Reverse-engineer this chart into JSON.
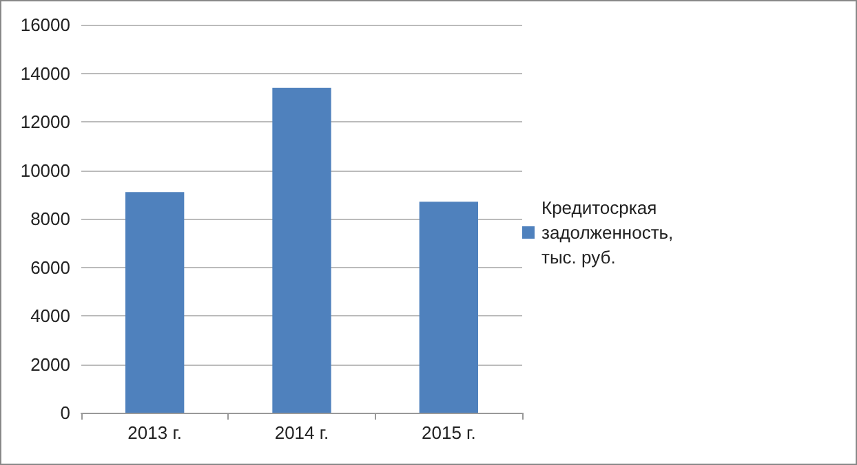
{
  "chart_data": {
    "type": "bar",
    "categories": [
      "2013 г.",
      "2014 г.",
      "2015 г."
    ],
    "series": [
      {
        "name": "Кредитосркая задолженность, тыс. руб.",
        "color": "#4f81bd",
        "values": [
          9100,
          13400,
          8700
        ]
      }
    ],
    "ylim": [
      0,
      16000
    ],
    "yticks": [
      0,
      2000,
      4000,
      6000,
      8000,
      10000,
      12000,
      14000,
      16000
    ],
    "grid": "y",
    "legend": "right"
  }
}
